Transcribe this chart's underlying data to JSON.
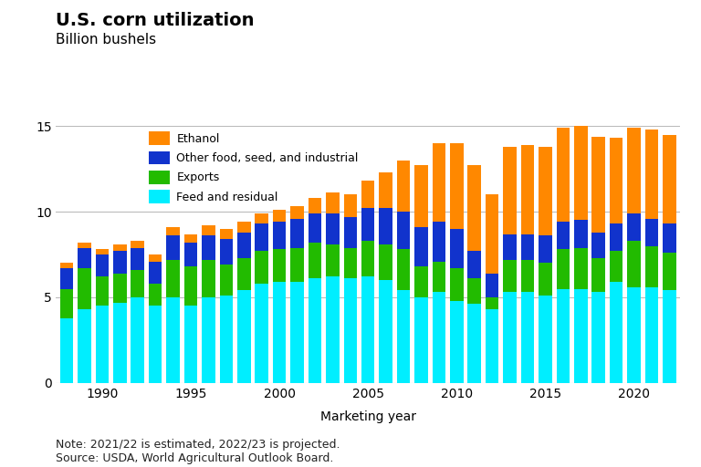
{
  "title": "U.S. corn utilization",
  "ylabel": "Billion bushels",
  "xlabel": "Marketing year",
  "note": "Note: 2021/22 is estimated, 2022/23 is projected.\nSource: USDA, World Agricultural Outlook Board.",
  "years": [
    1988,
    1989,
    1990,
    1991,
    1992,
    1993,
    1994,
    1995,
    1996,
    1997,
    1998,
    1999,
    2000,
    2001,
    2002,
    2003,
    2004,
    2005,
    2006,
    2007,
    2008,
    2009,
    2010,
    2011,
    2012,
    2013,
    2014,
    2015,
    2016,
    2017,
    2018,
    2019,
    2020,
    2021,
    2022
  ],
  "feed_residual": [
    3.8,
    4.3,
    4.5,
    4.7,
    5.0,
    4.5,
    5.0,
    4.5,
    5.0,
    5.1,
    5.4,
    5.8,
    5.9,
    5.9,
    6.1,
    6.2,
    6.1,
    6.2,
    6.0,
    5.4,
    5.0,
    5.3,
    4.8,
    4.6,
    4.3,
    5.3,
    5.3,
    5.1,
    5.5,
    5.5,
    5.3,
    5.9,
    5.6,
    5.6,
    5.4
  ],
  "exports": [
    1.7,
    2.4,
    1.7,
    1.7,
    1.6,
    1.3,
    2.2,
    2.3,
    2.2,
    1.8,
    1.9,
    1.9,
    1.9,
    2.0,
    2.1,
    1.9,
    1.8,
    2.1,
    2.1,
    2.4,
    1.8,
    1.8,
    1.9,
    1.5,
    0.7,
    1.9,
    1.9,
    1.9,
    2.3,
    2.4,
    2.0,
    1.8,
    2.7,
    2.4,
    2.2
  ],
  "other_fsi": [
    1.2,
    1.2,
    1.3,
    1.3,
    1.3,
    1.3,
    1.4,
    1.4,
    1.4,
    1.5,
    1.5,
    1.6,
    1.6,
    1.7,
    1.7,
    1.8,
    1.8,
    1.9,
    2.1,
    2.2,
    2.3,
    2.3,
    2.3,
    1.6,
    1.4,
    1.5,
    1.5,
    1.6,
    1.6,
    1.6,
    1.5,
    1.6,
    1.6,
    1.6,
    1.7
  ],
  "ethanol": [
    0.3,
    0.3,
    0.3,
    0.4,
    0.4,
    0.4,
    0.5,
    0.5,
    0.6,
    0.6,
    0.6,
    0.6,
    0.7,
    0.7,
    0.9,
    1.2,
    1.3,
    1.6,
    2.1,
    3.0,
    3.6,
    4.6,
    5.0,
    5.0,
    4.6,
    5.1,
    5.2,
    5.2,
    5.5,
    5.6,
    5.6,
    5.0,
    5.0,
    5.2,
    5.2
  ],
  "color_feed": "#00EEFF",
  "color_exports": "#22BB00",
  "color_other_fsi": "#1133CC",
  "color_ethanol": "#FF8800",
  "ylim": [
    0,
    15
  ],
  "yticks": [
    0,
    5,
    10,
    15
  ],
  "xtick_years": [
    1990,
    1995,
    2000,
    2005,
    2010,
    2015,
    2020
  ],
  "legend_labels": [
    "Ethanol",
    "Other food, seed, and industrial",
    "Exports",
    "Feed and residual"
  ],
  "legend_colors": [
    "#FF8800",
    "#1133CC",
    "#22BB00",
    "#00EEFF"
  ],
  "bar_width": 0.75,
  "background_color": "#FFFFFF",
  "grid_color": "#BBBBBB",
  "title_fontsize": 14,
  "subtitle_fontsize": 11,
  "label_fontsize": 10,
  "tick_fontsize": 10,
  "legend_fontsize": 9,
  "note_fontsize": 9
}
